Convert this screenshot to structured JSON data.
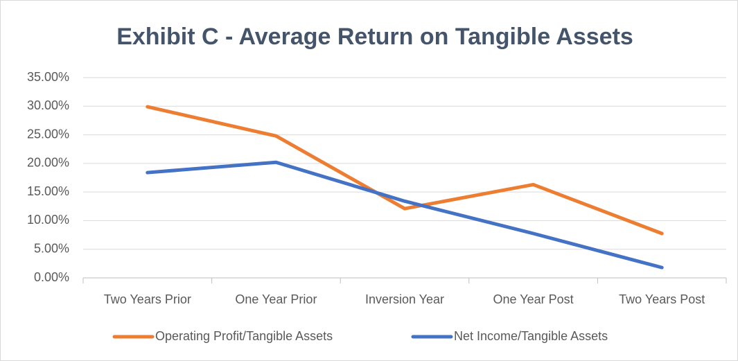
{
  "chart_data": {
    "type": "line",
    "title": "Exhibit C - Average Return on Tangible Assets",
    "categories": [
      "Two Years Prior",
      "One Year Prior",
      "Inversion Year",
      "One Year Post",
      "Two Years Post"
    ],
    "series": [
      {
        "name": "Operating Profit/Tangible Assets",
        "color": "#ed7d31",
        "values": [
          29.9,
          24.8,
          12.1,
          16.3,
          7.75
        ]
      },
      {
        "name": "Net Income/Tangible Assets",
        "color": "#4472c4",
        "values": [
          18.4,
          20.2,
          13.4,
          7.75,
          1.8
        ]
      }
    ],
    "ylim": [
      0,
      35
    ],
    "yticks": [
      {
        "value": 0,
        "label": "0.00%"
      },
      {
        "value": 5,
        "label": "5.00%"
      },
      {
        "value": 10,
        "label": "10.00%"
      },
      {
        "value": 15,
        "label": "15.00%"
      },
      {
        "value": 20,
        "label": "20.00%"
      },
      {
        "value": 25,
        "label": "25.00%"
      },
      {
        "value": 30,
        "label": "30.00%"
      },
      {
        "value": 35,
        "label": "35.00%"
      }
    ],
    "grid": true,
    "legend": "bottom"
  }
}
